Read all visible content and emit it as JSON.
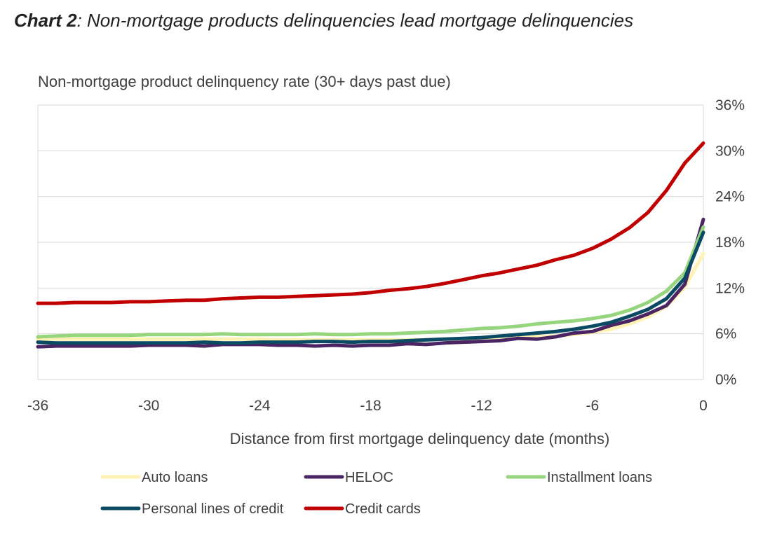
{
  "header": {
    "title_lead": "Chart 2",
    "title_rest": ": Non-mortgage products delinquencies lead mortgage delinquencies"
  },
  "chart_data": {
    "type": "line",
    "title": "Chart 2: Non-mortgage products delinquencies lead mortgage delinquencies",
    "subtitle": "Non-mortgage product delinquency rate (30+ days past due)",
    "xlabel": "Distance from first mortgage delinquency date (months)",
    "ylabel": "",
    "xlim": [
      -36,
      0
    ],
    "ylim": [
      0,
      36
    ],
    "x_ticks": [
      -36,
      -30,
      -24,
      -18,
      -12,
      -6,
      0
    ],
    "x_tick_labels": [
      "-36",
      "-30",
      "-24",
      "-18",
      "-12",
      "-6",
      "0"
    ],
    "y_ticks": [
      0,
      6,
      12,
      18,
      24,
      30,
      36
    ],
    "y_tick_labels": [
      "0%",
      "6%",
      "12%",
      "18%",
      "24%",
      "30%",
      "36%"
    ],
    "y_axis_side": "right",
    "grid": "horizontal",
    "legend_position": "bottom",
    "x": [
      -36,
      -35,
      -34,
      -33,
      -32,
      -31,
      -30,
      -29,
      -28,
      -27,
      -26,
      -25,
      -24,
      -23,
      -22,
      -21,
      -20,
      -19,
      -18,
      -17,
      -16,
      -15,
      -14,
      -13,
      -12,
      -11,
      -10,
      -9,
      -8,
      -7,
      -6,
      -5,
      -4,
      -3,
      -2,
      -1,
      0
    ],
    "series": [
      {
        "name": "Auto loans",
        "color": "#FFF2B3",
        "values": [
          5.3,
          5.3,
          5.3,
          5.3,
          5.3,
          5.3,
          5.3,
          5.3,
          5.3,
          5.3,
          5.3,
          5.3,
          5.3,
          5.2,
          5.2,
          5.2,
          5.2,
          5.2,
          5.2,
          5.2,
          5.2,
          5.2,
          5.3,
          5.3,
          5.4,
          5.4,
          5.5,
          5.6,
          5.7,
          5.9,
          6.2,
          6.6,
          7.3,
          8.2,
          9.6,
          12.1,
          16.5
        ]
      },
      {
        "name": "HELOC",
        "color": "#4B2463",
        "values": [
          4.3,
          4.4,
          4.4,
          4.4,
          4.4,
          4.4,
          4.5,
          4.5,
          4.5,
          4.4,
          4.6,
          4.6,
          4.6,
          4.5,
          4.5,
          4.4,
          4.5,
          4.4,
          4.5,
          4.5,
          4.7,
          4.6,
          4.8,
          4.9,
          5.0,
          5.1,
          5.4,
          5.3,
          5.6,
          6.1,
          6.3,
          7.1,
          7.7,
          8.6,
          9.7,
          12.5,
          21.0
        ]
      },
      {
        "name": "Installment loans",
        "color": "#96D47E",
        "values": [
          5.6,
          5.7,
          5.8,
          5.8,
          5.8,
          5.8,
          5.9,
          5.9,
          5.9,
          5.9,
          6.0,
          5.9,
          5.9,
          5.9,
          5.9,
          6.0,
          5.9,
          5.9,
          6.0,
          6.0,
          6.1,
          6.2,
          6.3,
          6.5,
          6.7,
          6.8,
          7.0,
          7.3,
          7.5,
          7.7,
          8.0,
          8.4,
          9.1,
          10.1,
          11.6,
          14.0,
          20.0
        ]
      },
      {
        "name": "Personal lines of credit",
        "color": "#0B4A63",
        "values": [
          4.9,
          4.8,
          4.8,
          4.8,
          4.8,
          4.8,
          4.8,
          4.8,
          4.8,
          4.9,
          4.8,
          4.8,
          4.9,
          4.9,
          4.9,
          5.0,
          5.0,
          4.9,
          5.0,
          5.0,
          5.1,
          5.2,
          5.3,
          5.4,
          5.5,
          5.7,
          5.9,
          6.1,
          6.3,
          6.6,
          7.0,
          7.5,
          8.3,
          9.2,
          10.6,
          13.3,
          19.3
        ]
      },
      {
        "name": "Credit cards",
        "color": "#C00000",
        "values": [
          10.0,
          10.0,
          10.1,
          10.1,
          10.1,
          10.2,
          10.2,
          10.3,
          10.4,
          10.4,
          10.6,
          10.7,
          10.8,
          10.8,
          10.9,
          11.0,
          11.1,
          11.2,
          11.4,
          11.7,
          11.9,
          12.2,
          12.6,
          13.1,
          13.6,
          14.0,
          14.5,
          15.0,
          15.7,
          16.3,
          17.2,
          18.4,
          19.9,
          21.9,
          24.8,
          28.4,
          31.0
        ]
      }
    ]
  }
}
